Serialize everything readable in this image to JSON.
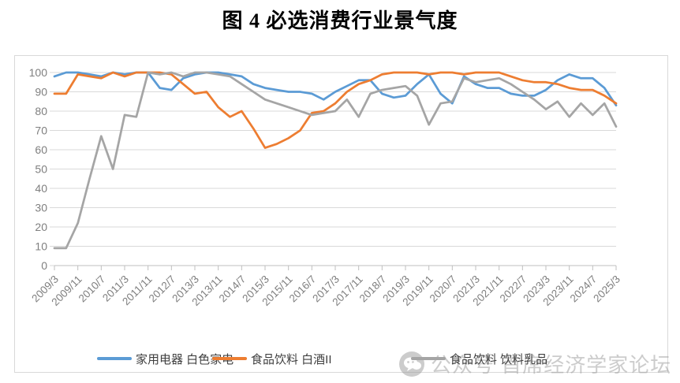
{
  "chart_data": {
    "type": "line",
    "title": "图 4 必选消费行业景气度",
    "xlabel": "",
    "ylabel": "",
    "ylim": [
      0,
      100
    ],
    "y_step": 10,
    "y_ticks": [
      0,
      10,
      20,
      30,
      40,
      50,
      60,
      70,
      80,
      90,
      100
    ],
    "grid": true,
    "legend_position": "bottom",
    "x_tick_every": 2,
    "x_tick_labels": [
      "2009/3",
      "2009/11",
      "2010/7",
      "2011/3",
      "2011/11",
      "2012/7",
      "2013/3",
      "2013/11",
      "2014/7",
      "2015/3",
      "2015/11",
      "2016/7",
      "2017/3",
      "2017/11",
      "2018/7",
      "2019/3",
      "2019/11",
      "2020/7",
      "2021/3",
      "2021/11",
      "2022/7",
      "2023/3",
      "2023/11",
      "2024/7",
      "2025/3"
    ],
    "x": [
      "2009/3",
      "2009/7",
      "2009/11",
      "2010/3",
      "2010/7",
      "2010/11",
      "2011/3",
      "2011/7",
      "2011/11",
      "2012/3",
      "2012/7",
      "2012/11",
      "2013/3",
      "2013/7",
      "2013/11",
      "2014/3",
      "2014/7",
      "2014/11",
      "2015/3",
      "2015/7",
      "2015/11",
      "2016/3",
      "2016/7",
      "2016/11",
      "2017/3",
      "2017/7",
      "2017/11",
      "2018/3",
      "2018/7",
      "2018/11",
      "2019/3",
      "2019/7",
      "2019/11",
      "2020/3",
      "2020/7",
      "2020/11",
      "2021/3",
      "2021/7",
      "2021/11",
      "2022/3",
      "2022/7",
      "2022/11",
      "2023/3",
      "2023/7",
      "2023/11",
      "2024/3",
      "2024/7",
      "2024/11",
      "2025/3"
    ],
    "series": [
      {
        "name": "家用电器 白色家电",
        "color": "#5B9BD5",
        "values": [
          98,
          100,
          100,
          99,
          98,
          100,
          99,
          100,
          100,
          92,
          91,
          97,
          99,
          100,
          100,
          99,
          98,
          94,
          92,
          91,
          90,
          90,
          89,
          86,
          90,
          93,
          96,
          96,
          89,
          87,
          88,
          94,
          99,
          89,
          84,
          98,
          94,
          92,
          92,
          89,
          88,
          88,
          91,
          96,
          99,
          97,
          97,
          92,
          83
        ]
      },
      {
        "name": "食品饮料 白酒II",
        "color": "#ED7D31",
        "values": [
          89,
          89,
          99,
          98,
          97,
          100,
          98,
          100,
          100,
          100,
          99,
          94,
          89,
          90,
          82,
          77,
          80,
          71,
          61,
          63,
          66,
          70,
          79,
          80,
          84,
          90,
          94,
          96,
          99,
          100,
          100,
          100,
          99,
          100,
          100,
          99,
          100,
          100,
          100,
          98,
          96,
          95,
          95,
          94,
          92,
          91,
          91,
          88,
          84
        ]
      },
      {
        "name": "食品饮料 饮料乳品",
        "color": "#A5A5A5",
        "values": [
          9,
          9,
          22,
          45,
          67,
          50,
          78,
          77,
          100,
          99,
          100,
          98,
          100,
          100,
          99,
          98,
          94,
          90,
          86,
          84,
          82,
          80,
          78,
          79,
          80,
          86,
          77,
          89,
          91,
          92,
          93,
          88,
          73,
          84,
          85,
          97,
          95,
          96,
          97,
          94,
          90,
          86,
          81,
          85,
          77,
          84,
          78,
          84,
          72
        ]
      }
    ],
    "style": {
      "gridline_color": "#D9D9D9",
      "axis_color": "#BFBFBF",
      "tick_label_color": "#7F7F7F",
      "line_width": 2.75
    }
  },
  "watermark": {
    "text": "公众号 首席经济学家论坛",
    "icon": "wechat-icon"
  }
}
